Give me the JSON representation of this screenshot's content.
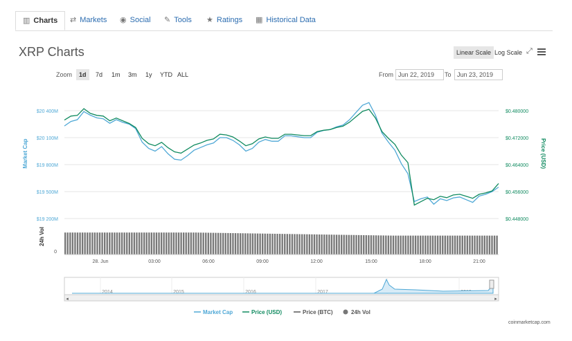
{
  "tabs": [
    {
      "label": "Charts",
      "icon": "bar-chart-icon",
      "active": true
    },
    {
      "label": "Markets",
      "icon": "exchange-icon"
    },
    {
      "label": "Social",
      "icon": "globe-icon"
    },
    {
      "label": "Tools",
      "icon": "wrench-icon"
    },
    {
      "label": "Ratings",
      "icon": "star-icon"
    },
    {
      "label": "Historical Data",
      "icon": "calendar-icon"
    }
  ],
  "title": "XRP Charts",
  "scale": {
    "linear": "Linear Scale",
    "log": "Log Scale",
    "active": "linear"
  },
  "zoom": {
    "label": "Zoom",
    "options": [
      "1d",
      "7d",
      "1m",
      "3m",
      "1y",
      "YTD",
      "ALL"
    ],
    "active": "1d"
  },
  "range": {
    "from_label": "From",
    "from": "Jun 22, 2019",
    "to_label": "To",
    "to": "Jun 23, 2019"
  },
  "credit": "coinmarketcap.com",
  "colors": {
    "market_cap": "#4fa8d6",
    "price_usd": "#0f8a5f",
    "price_btc": "#555555",
    "volume": "#777777"
  },
  "chart_data": {
    "type": "line",
    "x_ticks": [
      "28. Jun",
      "03:00",
      "06:00",
      "09:00",
      "12:00",
      "15:00",
      "18:00",
      "21:00"
    ],
    "left_axis": {
      "label": "Market Cap",
      "ticks": [
        "$20 400M",
        "$20 100M",
        "$19 800M",
        "$19 500M",
        "$19 200M"
      ],
      "range": [
        19200,
        20400
      ]
    },
    "right_axis": {
      "label": "Price (USD)",
      "ticks": [
        "$0.480000",
        "$0.472000",
        "$0.464000",
        "$0.456000",
        "$0.448000"
      ],
      "range": [
        0.448,
        0.48
      ]
    },
    "volume_axis": {
      "label": "24h Vol",
      "ticks": [
        "0"
      ]
    },
    "series": [
      {
        "name": "Market Cap",
        "unit": "USD M",
        "values": [
          20230,
          20280,
          20300,
          20390,
          20350,
          20320,
          20310,
          20260,
          20300,
          20270,
          20250,
          20200,
          20050,
          19980,
          19950,
          20000,
          19920,
          19860,
          19850,
          19900,
          19960,
          19990,
          20020,
          20040,
          20100,
          20100,
          20070,
          20020,
          19950,
          19980,
          20050,
          20080,
          20060,
          20060,
          20120,
          20120,
          20110,
          20100,
          20100,
          20160,
          20180,
          20190,
          20220,
          20240,
          20300,
          20380,
          20460,
          20490,
          20350,
          20150,
          20050,
          19960,
          19810,
          19700,
          19390,
          19420,
          19440,
          19360,
          19420,
          19400,
          19430,
          19440,
          19410,
          19380,
          19450,
          19470,
          19500,
          19550
        ]
      },
      {
        "name": "Price (USD)",
        "unit": "USD",
        "values": [
          0.4772,
          0.4784,
          0.4786,
          0.4806,
          0.4792,
          0.4786,
          0.4784,
          0.477,
          0.4778,
          0.477,
          0.4762,
          0.475,
          0.4718,
          0.4702,
          0.4696,
          0.4706,
          0.469,
          0.4678,
          0.4674,
          0.4686,
          0.4698,
          0.4704,
          0.4712,
          0.4716,
          0.473,
          0.4728,
          0.4722,
          0.471,
          0.4696,
          0.4702,
          0.4716,
          0.4722,
          0.4718,
          0.4718,
          0.473,
          0.473,
          0.4728,
          0.4726,
          0.4726,
          0.4738,
          0.4742,
          0.4744,
          0.475,
          0.4754,
          0.4766,
          0.4782,
          0.4798,
          0.4804,
          0.4778,
          0.4738,
          0.4718,
          0.47,
          0.4668,
          0.4646,
          0.452,
          0.453,
          0.454,
          0.4536,
          0.4546,
          0.4542,
          0.455,
          0.4552,
          0.4546,
          0.454,
          0.4552,
          0.4556,
          0.4562,
          0.4584
        ]
      }
    ],
    "volume_level": 0.74,
    "navigator": {
      "years": [
        "2014",
        "2015",
        "2016",
        "2017",
        "2018",
        "2019"
      ]
    },
    "legend": [
      "Market Cap",
      "Price (USD)",
      "Price (BTC)",
      "24h Vol"
    ],
    "legend_position": "bottom"
  }
}
